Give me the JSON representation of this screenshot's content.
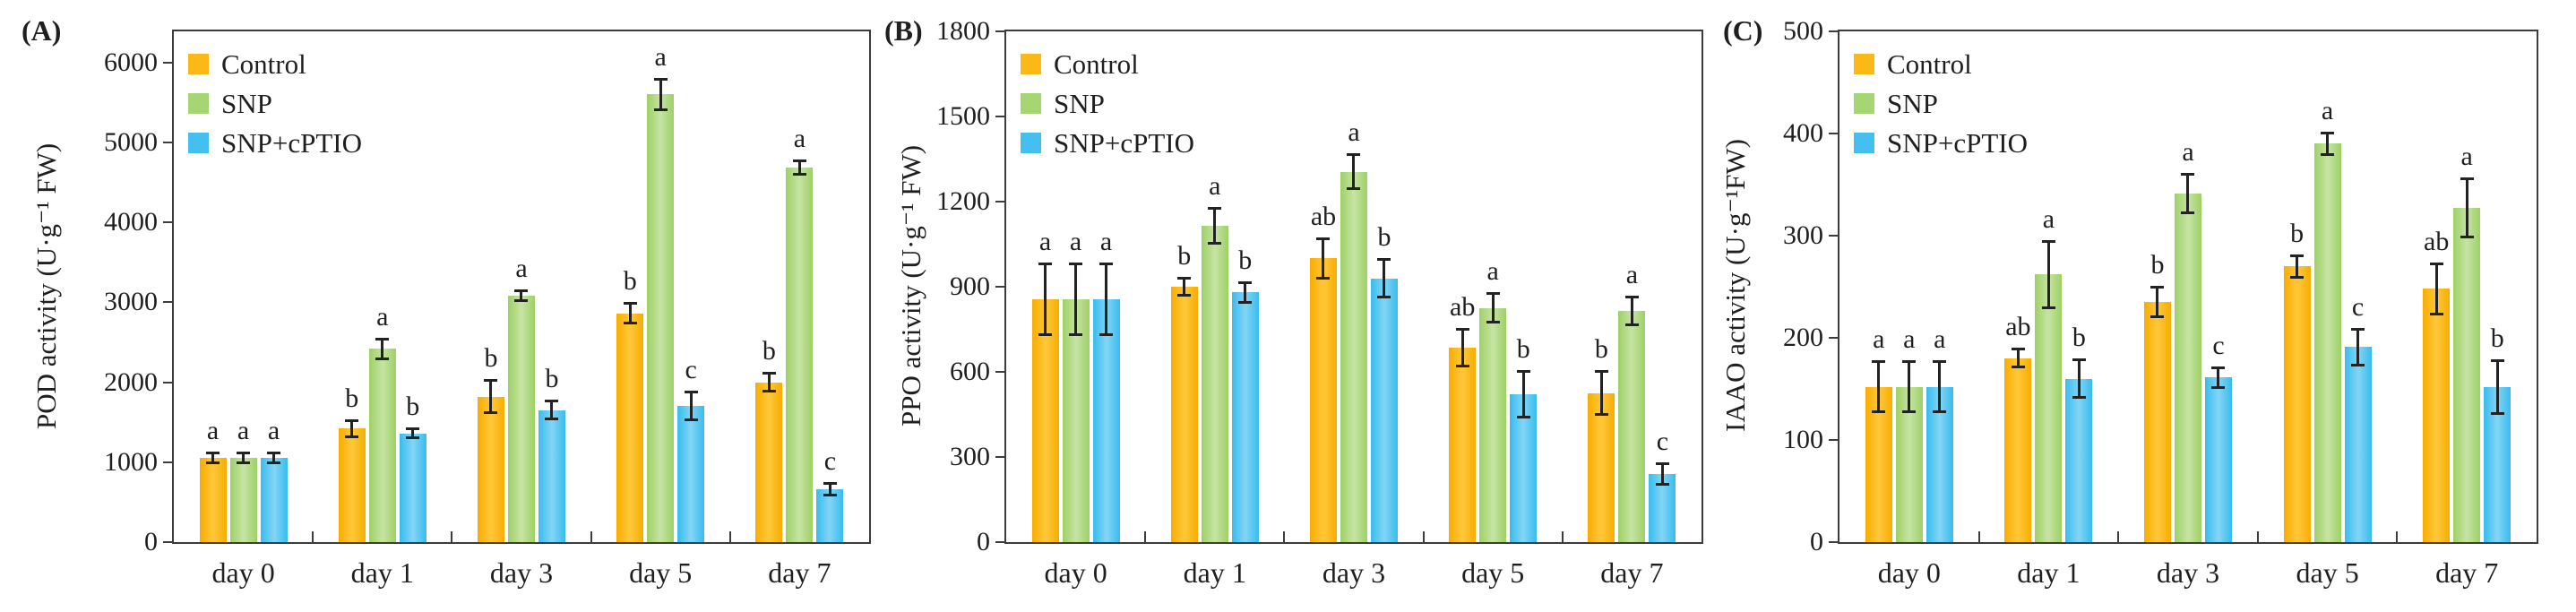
{
  "figure_title": "",
  "x_axis_categories": [
    "day 0",
    "day 1",
    "day 3",
    "day 5",
    "day 7"
  ],
  "legend_labels": [
    "Control",
    "SNP",
    "SNP+cPTIO"
  ],
  "colors": {
    "control": {
      "swatch": "#FCB817",
      "edge": "#F7AC00",
      "center": "#FFC83A"
    },
    "snp": {
      "swatch": "#A6D573",
      "edge": "#9ED065",
      "center": "#C6E4A4"
    },
    "cptio": {
      "swatch": "#44C0F0",
      "edge": "#38BCEE",
      "center": "#83D5F5"
    },
    "axis": "#3c3c3c",
    "error_bar": "#222222"
  },
  "chart_data": [
    {
      "type": "bar",
      "panel_label": "(A)",
      "ylabel": "POD activity (U·g⁻¹ FW)",
      "xlabel": "",
      "categories": [
        "day 0",
        "day 1",
        "day 3",
        "day 5",
        "day 7"
      ],
      "yticks": [
        0,
        1000,
        2000,
        3000,
        4000,
        5000,
        6000
      ],
      "ylim": [
        0,
        6390
      ],
      "grid": false,
      "legend_position": "top-left",
      "series": [
        {
          "name": "Control",
          "color_key": "control",
          "values": [
            1050,
            1420,
            1820,
            2860,
            2000
          ],
          "errors": [
            80,
            120,
            220,
            140,
            130
          ],
          "letters": [
            "a",
            "b",
            "b",
            "b",
            "b"
          ]
        },
        {
          "name": "SNP",
          "color_key": "snp",
          "values": [
            1050,
            2420,
            3080,
            5600,
            4690
          ],
          "errors": [
            80,
            140,
            80,
            210,
            100
          ],
          "letters": [
            "a",
            "a",
            "a",
            "a",
            "a"
          ]
        },
        {
          "name": "SNP+cPTIO",
          "color_key": "cptio",
          "values": [
            1050,
            1360,
            1650,
            1700,
            660
          ],
          "errors": [
            80,
            70,
            130,
            190,
            90
          ],
          "letters": [
            "a",
            "b",
            "b",
            "c",
            "c"
          ]
        }
      ]
    },
    {
      "type": "bar",
      "panel_label": "(B)",
      "ylabel": "PPO activity (U·g⁻¹ FW)",
      "xlabel": "",
      "categories": [
        "day 0",
        "day 1",
        "day 3",
        "day 5",
        "day 7"
      ],
      "yticks": [
        0,
        300,
        600,
        900,
        1200,
        1500,
        1800
      ],
      "ylim": [
        0,
        1800
      ],
      "grid": false,
      "legend_position": "top-left",
      "series": [
        {
          "name": "Control",
          "color_key": "control",
          "values": [
            855,
            900,
            1000,
            685,
            525
          ],
          "errors": [
            130,
            35,
            75,
            70,
            80
          ],
          "letters": [
            "a",
            "b",
            "ab",
            "ab",
            "b"
          ]
        },
        {
          "name": "SNP",
          "color_key": "snp",
          "values": [
            855,
            1115,
            1305,
            825,
            815
          ],
          "errors": [
            130,
            65,
            65,
            55,
            55
          ],
          "letters": [
            "a",
            "a",
            "a",
            "a",
            "a"
          ]
        },
        {
          "name": "SNP+cPTIO",
          "color_key": "cptio",
          "values": [
            855,
            880,
            930,
            520,
            240
          ],
          "errors": [
            130,
            40,
            70,
            85,
            40
          ],
          "letters": [
            "a",
            "b",
            "b",
            "b",
            "c"
          ]
        }
      ]
    },
    {
      "type": "bar",
      "panel_label": "(C)",
      "ylabel": "IAAO activity (U·g⁻¹FW)",
      "xlabel": "",
      "categories": [
        "day 0",
        "day 1",
        "day 3",
        "day 5",
        "day 7"
      ],
      "yticks": [
        0,
        100,
        200,
        300,
        400,
        500
      ],
      "ylim": [
        0,
        500
      ],
      "grid": false,
      "legend_position": "top-left",
      "series": [
        {
          "name": "Control",
          "color_key": "control",
          "values": [
            152,
            180,
            235,
            270,
            248
          ],
          "errors": [
            26,
            10,
            16,
            12,
            26
          ],
          "letters": [
            "a",
            "ab",
            "b",
            "b",
            "ab"
          ]
        },
        {
          "name": "SNP",
          "color_key": "snp",
          "values": [
            152,
            262,
            341,
            390,
            327
          ],
          "errors": [
            26,
            34,
            20,
            12,
            30
          ],
          "letters": [
            "a",
            "a",
            "a",
            "a",
            "a"
          ]
        },
        {
          "name": "SNP+cPTIO",
          "color_key": "cptio",
          "values": [
            152,
            160,
            161,
            191,
            152
          ],
          "errors": [
            26,
            20,
            11,
            19,
            27
          ],
          "letters": [
            "a",
            "b",
            "c",
            "c",
            "b"
          ]
        }
      ]
    }
  ]
}
